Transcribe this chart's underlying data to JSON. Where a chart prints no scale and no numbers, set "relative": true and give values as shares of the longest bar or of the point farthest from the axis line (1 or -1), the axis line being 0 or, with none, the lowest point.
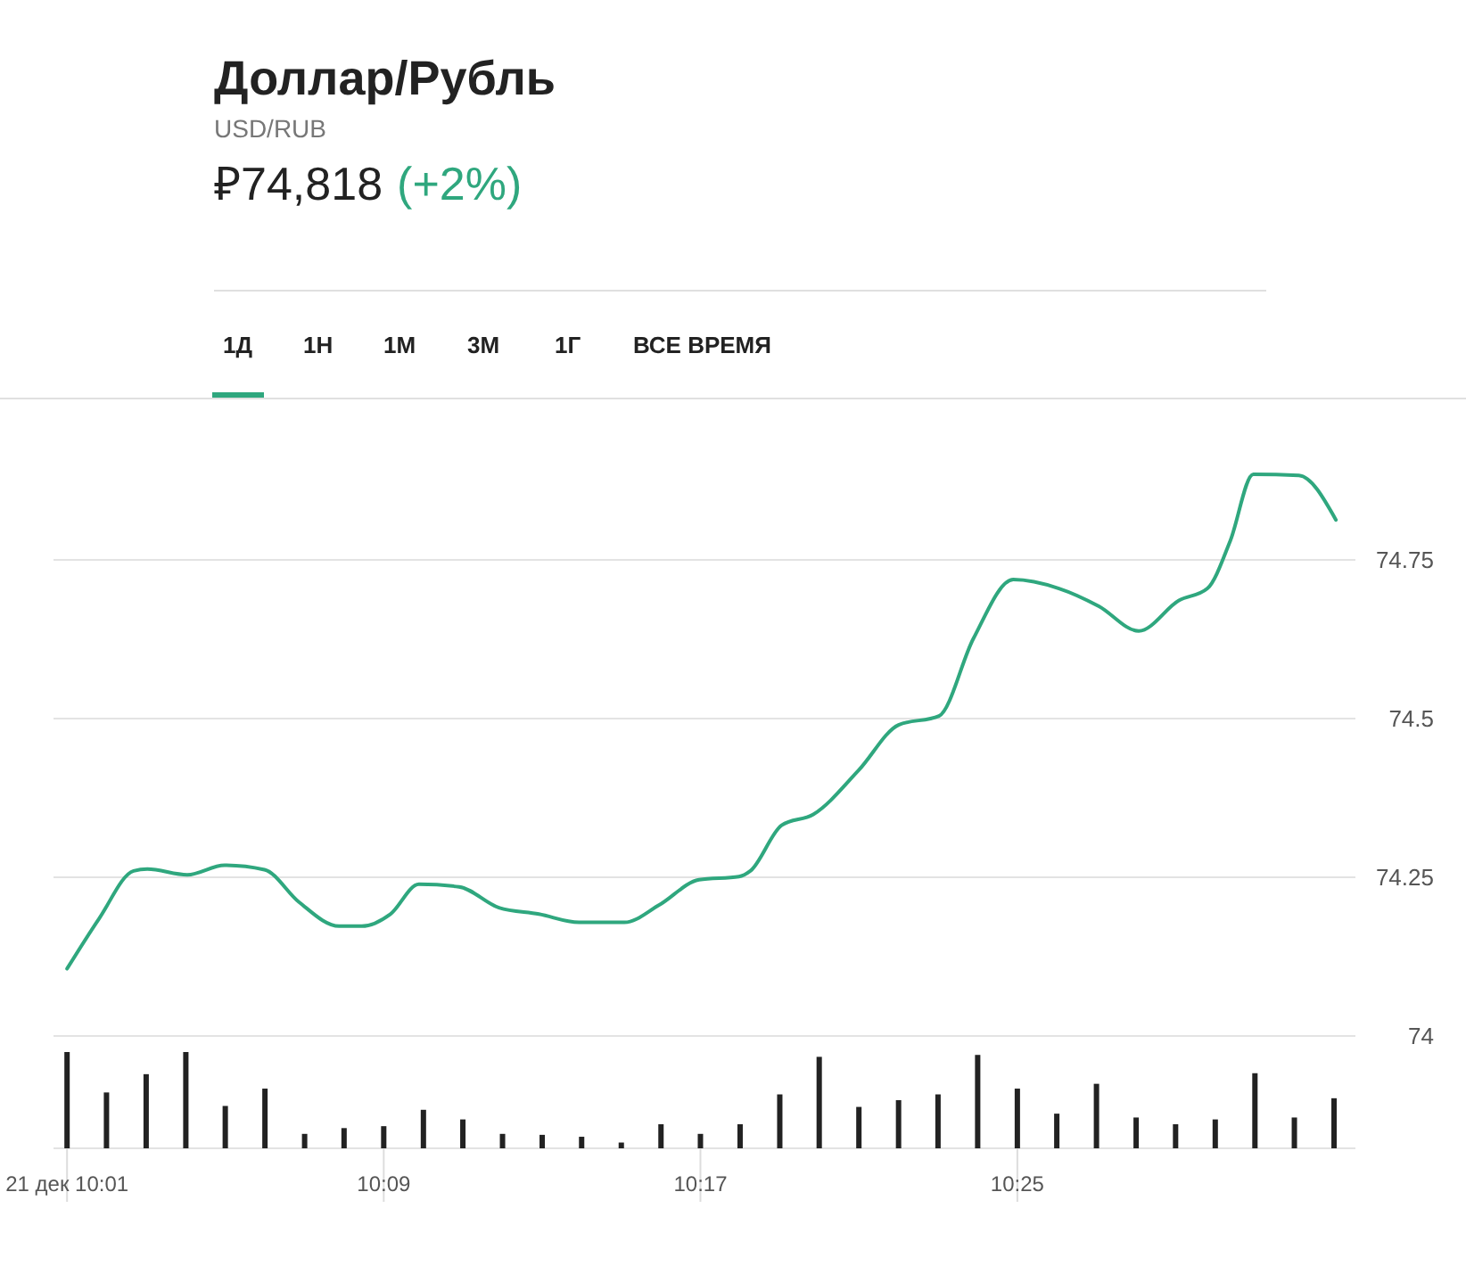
{
  "chart_data": [
    {
      "type": "line",
      "title": "Доллар/Рубль",
      "subtitle": "USD/RUB",
      "annotations": [
        "₽74,818",
        "(+2%)",
        "1Д",
        "1Н",
        "1М",
        "3М",
        "1Г",
        "ВСЕ ВРЕМЯ"
      ],
      "series": [
        {
          "color": "#2fa77e",
          "x": [
            10.0167,
            10.0302,
            10.0447,
            10.0505,
            10.0673,
            10.083,
            10.0998,
            10.1143,
            10.1312,
            10.1408,
            10.1528,
            10.1648,
            10.1817,
            10.1985,
            10.2153,
            10.2322,
            10.2513,
            10.2658,
            10.2827,
            10.2995,
            10.3043,
            10.3175,
            10.3308,
            10.35,
            10.3667,
            10.3837,
            10.3982,
            10.415,
            10.4342,
            10.451,
            10.4678,
            10.4847,
            10.4967,
            10.5063,
            10.516,
            10.5352,
            10.5508
          ],
          "values": [
            74.106,
            74.185,
            74.26,
            74.263,
            74.254,
            74.269,
            74.262,
            74.211,
            74.173,
            74.173,
            74.192,
            74.239,
            74.235,
            74.202,
            74.192,
            74.179,
            74.179,
            74.206,
            74.246,
            74.251,
            74.26,
            74.332,
            74.349,
            74.419,
            74.49,
            74.504,
            74.626,
            74.719,
            74.705,
            74.677,
            74.638,
            74.686,
            74.705,
            74.78,
            74.885,
            74.883,
            74.813
          ]
        }
      ],
      "xlim": [
        10.011,
        10.559
      ],
      "ylim": [
        74,
        75
      ],
      "yticks": [
        74,
        74.25,
        74.5,
        74.75
      ],
      "grid": "y",
      "tick_labels": "y"
    },
    {
      "type": "bar",
      "relative": true,
      "x": [
        10.0167,
        10.0333,
        10.05,
        10.0667,
        10.0833,
        10.1,
        10.1167,
        10.1333,
        10.15,
        10.1667,
        10.1833,
        10.2,
        10.2167,
        10.2333,
        10.25,
        10.2667,
        10.2833,
        10.3,
        10.3167,
        10.3333,
        10.35,
        10.3667,
        10.3833,
        10.4,
        10.4167,
        10.4333,
        10.45,
        10.4667,
        10.4833,
        10.5,
        10.5167,
        10.5333,
        10.55
      ],
      "series": [
        {
          "color": "#222222",
          "values": [
            1,
            0.58,
            0.77,
            1,
            0.44,
            0.62,
            0.15,
            0.21,
            0.23,
            0.4,
            0.3,
            0.15,
            0.14,
            0.12,
            0.06,
            0.25,
            0.15,
            0.25,
            0.56,
            0.95,
            0.43,
            0.5,
            0.56,
            0.97,
            0.62,
            0.36,
            0.67,
            0.32,
            0.25,
            0.3,
            0.78,
            0.32,
            0.52
          ]
        }
      ],
      "xlim": [
        10.011,
        10.559
      ],
      "xticks": [
        {
          "value": 10.0167,
          "label": "21 дек 10:01"
        },
        {
          "value": 10.15,
          "label": "10:09"
        },
        {
          "value": 10.2833,
          "label": "10:17"
        },
        {
          "value": 10.4167,
          "label": "10:25"
        }
      ],
      "tick_labels": "x"
    }
  ]
}
